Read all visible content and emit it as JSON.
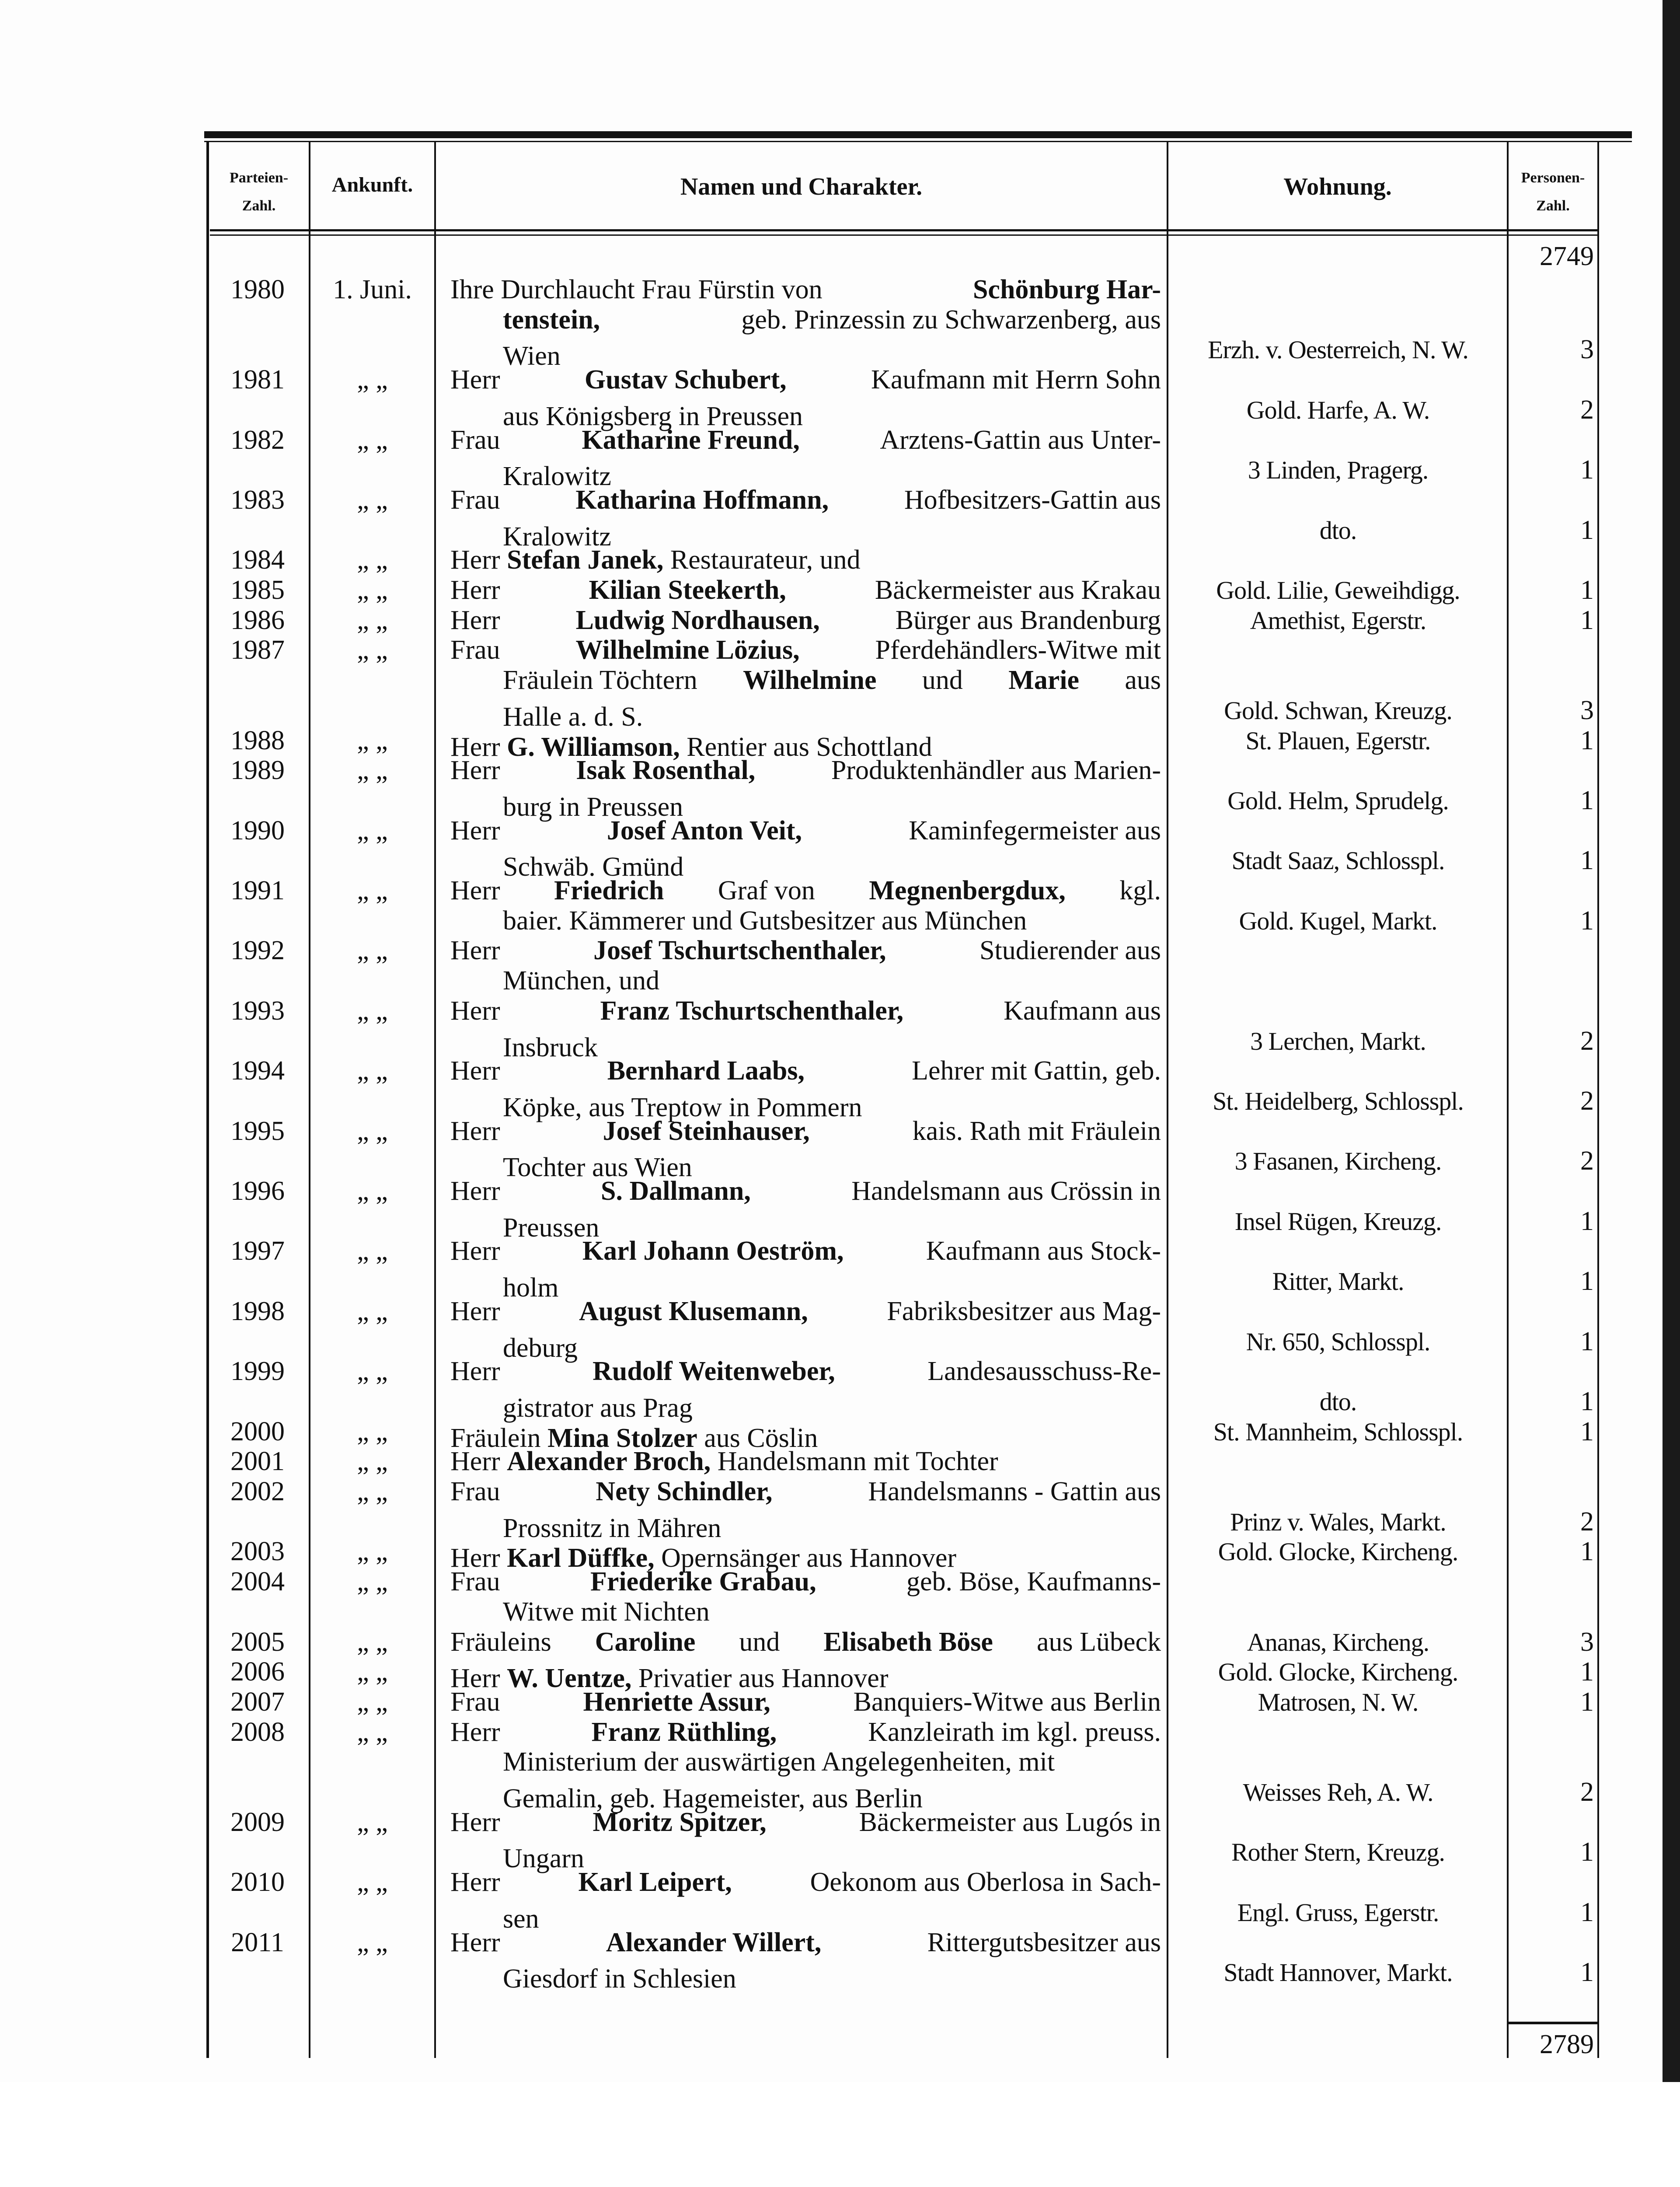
{
  "header": {
    "col_number": [
      "Parteien-",
      "Zahl."
    ],
    "col_arrival": "Ankunft.",
    "col_names": "Namen und Charakter.",
    "col_residence": "Wohnung.",
    "col_persons": [
      "Personen-",
      "Zahl."
    ]
  },
  "carry_over": "2749",
  "total": "2789",
  "ditto": "„  „",
  "entries": [
    {
      "num": "1980",
      "arrival": "1. Juni.",
      "lines": [
        [
          [
            "Ihre Durchlaucht Frau Fürstin von ",
            0
          ],
          [
            "Schönburg Har-",
            1
          ]
        ],
        [
          [
            "tenstein,",
            1
          ],
          [
            " geb. Prinzessin zu Schwarzenberg, aus",
            0
          ]
        ],
        [
          [
            "Wien",
            0
          ]
        ]
      ],
      "residence": "Erzh. v. Oesterreich, N. W.",
      "persons": "3"
    },
    {
      "num": "1981",
      "lines": [
        [
          [
            "Herr ",
            0
          ],
          [
            "Gustav Schubert,",
            1
          ],
          [
            " Kaufmann mit Herrn Sohn",
            0
          ]
        ],
        [
          [
            "aus Königsberg in Preussen",
            0
          ]
        ]
      ],
      "residence": "Gold. Harfe, A. W.",
      "persons": "2"
    },
    {
      "num": "1982",
      "lines": [
        [
          [
            "Frau ",
            0
          ],
          [
            "Katharine Freund,",
            1
          ],
          [
            " Arztens-Gattin aus Unter-",
            0
          ]
        ],
        [
          [
            "Kralowitz",
            0
          ]
        ]
      ],
      "residence": "3 Linden, Pragerg.",
      "persons": "1"
    },
    {
      "num": "1983",
      "lines": [
        [
          [
            "Frau ",
            0
          ],
          [
            "Katharina Hoffmann,",
            1
          ],
          [
            " Hofbesitzers-Gattin aus",
            0
          ]
        ],
        [
          [
            "Kralowitz",
            0
          ]
        ]
      ],
      "residence": "dto.",
      "persons": "1"
    },
    {
      "num": "1984",
      "lines": [
        [
          [
            "Herr ",
            0
          ],
          [
            "Stefan Janek,",
            1
          ],
          [
            " Restaurateur, und",
            0
          ]
        ]
      ],
      "residence": "",
      "persons": ""
    },
    {
      "num": "1985",
      "lines": [
        [
          [
            "Herr ",
            0
          ],
          [
            "Kilian Steekerth,",
            1
          ],
          [
            " Bäckermeister aus Krakau",
            0
          ]
        ]
      ],
      "residence": "Gold. Lilie, Geweihdigg.",
      "persons": "1",
      "full": true
    },
    {
      "num": "1986",
      "lines": [
        [
          [
            "Herr ",
            0
          ],
          [
            "Ludwig Nordhausen,",
            1
          ],
          [
            " Bürger aus Brandenburg",
            0
          ]
        ]
      ],
      "residence": "Amethist, Egerstr.",
      "persons": "1",
      "full": true
    },
    {
      "num": "1987",
      "lines": [
        [
          [
            "Frau ",
            0
          ],
          [
            "Wilhelmine Lözius,",
            1
          ],
          [
            " Pferdehändlers-Witwe mit",
            0
          ]
        ],
        [
          [
            "Fräulein Töchtern ",
            0
          ],
          [
            "Wilhelmine",
            1
          ],
          [
            " und ",
            0
          ],
          [
            "Marie",
            1
          ],
          [
            " aus",
            0
          ]
        ],
        [
          [
            "Halle a. d. S.",
            0
          ]
        ]
      ],
      "residence": "Gold. Schwan, Kreuzg.",
      "persons": "3"
    },
    {
      "num": "1988",
      "lines": [
        [
          [
            "Herr ",
            0
          ],
          [
            "G. Williamson,",
            1
          ],
          [
            " Rentier aus Schottland",
            0
          ]
        ]
      ],
      "residence": "St. Plauen, Egerstr.",
      "persons": "1"
    },
    {
      "num": "1989",
      "lines": [
        [
          [
            "Herr ",
            0
          ],
          [
            "Isak Rosenthal,",
            1
          ],
          [
            " Produktenhändler aus Marien-",
            0
          ]
        ],
        [
          [
            "burg in Preussen",
            0
          ]
        ]
      ],
      "residence": "Gold. Helm, Sprudelg.",
      "persons": "1"
    },
    {
      "num": "1990",
      "lines": [
        [
          [
            "Herr ",
            0
          ],
          [
            "Josef Anton Veit,",
            1
          ],
          [
            " Kaminfegermeister aus",
            0
          ]
        ],
        [
          [
            "Schwäb. Gmünd",
            0
          ]
        ]
      ],
      "residence": "Stadt Saaz, Schlosspl.",
      "persons": "1"
    },
    {
      "num": "1991",
      "lines": [
        [
          [
            "Herr ",
            0
          ],
          [
            "Friedrich",
            1
          ],
          [
            " Graf von ",
            0
          ],
          [
            "Megnenbergdux,",
            1
          ],
          [
            " kgl.",
            0
          ]
        ],
        [
          [
            "baier. Kämmerer und Gutsbesitzer aus München",
            0
          ]
        ]
      ],
      "residence": "Gold. Kugel, Markt.",
      "persons": "1",
      "full": true
    },
    {
      "num": "1992",
      "lines": [
        [
          [
            "Herr ",
            0
          ],
          [
            "Josef Tschurtschenthaler,",
            1
          ],
          [
            " Studierender aus",
            0
          ]
        ],
        [
          [
            "München, und",
            0
          ]
        ]
      ],
      "residence": "",
      "persons": ""
    },
    {
      "num": "1993",
      "lines": [
        [
          [
            "Herr ",
            0
          ],
          [
            "Franz Tschurtschenthaler,",
            1
          ],
          [
            " Kaufmann aus",
            0
          ]
        ],
        [
          [
            "Insbruck",
            0
          ]
        ]
      ],
      "residence": "3 Lerchen, Markt.",
      "persons": "2"
    },
    {
      "num": "1994",
      "lines": [
        [
          [
            "Herr ",
            0
          ],
          [
            "Bernhard Laabs,",
            1
          ],
          [
            " Lehrer mit Gattin, geb.",
            0
          ]
        ],
        [
          [
            "Köpke, aus Treptow in Pommern",
            0
          ]
        ]
      ],
      "residence": "St. Heidelberg, Schlosspl.",
      "persons": "2"
    },
    {
      "num": "1995",
      "lines": [
        [
          [
            "Herr ",
            0
          ],
          [
            "Josef Steinhauser,",
            1
          ],
          [
            " kais. Rath mit Fräulein",
            0
          ]
        ],
        [
          [
            "Tochter aus Wien",
            0
          ]
        ]
      ],
      "residence": "3 Fasanen, Kircheng.",
      "persons": "2"
    },
    {
      "num": "1996",
      "lines": [
        [
          [
            "Herr ",
            0
          ],
          [
            "S. Dallmann,",
            1
          ],
          [
            " Handelsmann aus Crössin in",
            0
          ]
        ],
        [
          [
            "Preussen",
            0
          ]
        ]
      ],
      "residence": "Insel Rügen, Kreuzg.",
      "persons": "1"
    },
    {
      "num": "1997",
      "lines": [
        [
          [
            "Herr ",
            0
          ],
          [
            "Karl Johann Oeström,",
            1
          ],
          [
            " Kaufmann aus Stock-",
            0
          ]
        ],
        [
          [
            "holm",
            0
          ]
        ]
      ],
      "residence": "Ritter, Markt.",
      "persons": "1"
    },
    {
      "num": "1998",
      "lines": [
        [
          [
            "Herr ",
            0
          ],
          [
            "August Klusemann,",
            1
          ],
          [
            " Fabriksbesitzer aus Mag-",
            0
          ]
        ],
        [
          [
            "deburg",
            0
          ]
        ]
      ],
      "residence": "Nr. 650, Schlosspl.",
      "persons": "1"
    },
    {
      "num": "1999",
      "lines": [
        [
          [
            "Herr ",
            0
          ],
          [
            "Rudolf Weitenweber,",
            1
          ],
          [
            " Landesausschuss-Re-",
            0
          ]
        ],
        [
          [
            "gistrator aus Prag",
            0
          ]
        ]
      ],
      "residence": "dto.",
      "persons": "1"
    },
    {
      "num": "2000",
      "lines": [
        [
          [
            "Fräulein ",
            0
          ],
          [
            "Mina Stolzer",
            1
          ],
          [
            " aus Cöslin",
            0
          ]
        ]
      ],
      "residence": "St. Mannheim, Schlosspl.",
      "persons": "1"
    },
    {
      "num": "2001",
      "lines": [
        [
          [
            "Herr ",
            0
          ],
          [
            "Alexander Broch,",
            1
          ],
          [
            " Handelsmann mit Tochter",
            0
          ]
        ]
      ],
      "residence": "",
      "persons": ""
    },
    {
      "num": "2002",
      "lines": [
        [
          [
            "Frau ",
            0
          ],
          [
            "Nety Schindler,",
            1
          ],
          [
            " Handelsmanns - Gattin aus",
            0
          ]
        ],
        [
          [
            "Prossnitz in Mähren",
            0
          ]
        ]
      ],
      "residence": "Prinz v. Wales, Markt.",
      "persons": "2"
    },
    {
      "num": "2003",
      "lines": [
        [
          [
            "Herr ",
            0
          ],
          [
            "Karl Düffke,",
            1
          ],
          [
            " Opernsänger aus Hannover",
            0
          ]
        ]
      ],
      "residence": "Gold. Glocke, Kircheng.",
      "persons": "1"
    },
    {
      "num": "2004",
      "lines": [
        [
          [
            "Frau ",
            0
          ],
          [
            "Friederike Grabau,",
            1
          ],
          [
            " geb. Böse, Kaufmanns-",
            0
          ]
        ],
        [
          [
            "Witwe mit Nichten",
            0
          ]
        ]
      ],
      "residence": "",
      "persons": ""
    },
    {
      "num": "2005",
      "lines": [
        [
          [
            "Fräuleins ",
            0
          ],
          [
            "Caroline",
            1
          ],
          [
            " und ",
            0
          ],
          [
            "Elisabeth Böse",
            1
          ],
          [
            " aus Lübeck",
            0
          ]
        ]
      ],
      "residence": "Ananas, Kircheng.",
      "persons": "3",
      "full": true
    },
    {
      "num": "2006",
      "lines": [
        [
          [
            "Herr ",
            0
          ],
          [
            "W. Uentze,",
            1
          ],
          [
            " Privatier aus Hannover",
            0
          ]
        ]
      ],
      "residence": "Gold. Glocke, Kircheng.",
      "persons": "1"
    },
    {
      "num": "2007",
      "lines": [
        [
          [
            "Frau ",
            0
          ],
          [
            "Henriette Assur,",
            1
          ],
          [
            " Banquiers-Witwe aus Berlin",
            0
          ]
        ]
      ],
      "residence": "Matrosen, N. W.",
      "persons": "1",
      "full": true
    },
    {
      "num": "2008",
      "lines": [
        [
          [
            "Herr ",
            0
          ],
          [
            "Franz Rüthling,",
            1
          ],
          [
            " Kanzleirath im kgl. preuss.",
            0
          ]
        ],
        [
          [
            "Ministerium der auswärtigen Angelegenheiten, mit",
            0
          ]
        ],
        [
          [
            "Gemalin, geb. Hagemeister, aus Berlin",
            0
          ]
        ]
      ],
      "residence": "Weisses Reh, A. W.",
      "persons": "2"
    },
    {
      "num": "2009",
      "lines": [
        [
          [
            "Herr ",
            0
          ],
          [
            "Moritz Spitzer,",
            1
          ],
          [
            " Bäckermeister aus Lugós in",
            0
          ]
        ],
        [
          [
            "Ungarn",
            0
          ]
        ]
      ],
      "residence": "Rother Stern, Kreuzg.",
      "persons": "1"
    },
    {
      "num": "2010",
      "lines": [
        [
          [
            "Herr ",
            0
          ],
          [
            "Karl Leipert,",
            1
          ],
          [
            " Oekonom aus Oberlosa in Sach-",
            0
          ]
        ],
        [
          [
            "sen",
            0
          ]
        ]
      ],
      "residence": "Engl. Gruss, Egerstr.",
      "persons": "1"
    },
    {
      "num": "2011",
      "lines": [
        [
          [
            "Herr ",
            0
          ],
          [
            "Alexander Willert,",
            1
          ],
          [
            " Rittergutsbesitzer aus",
            0
          ]
        ],
        [
          [
            "Giesdorf in Schlesien",
            0
          ]
        ]
      ],
      "residence": "Stadt Hannover, Markt.",
      "persons": "1"
    }
  ]
}
